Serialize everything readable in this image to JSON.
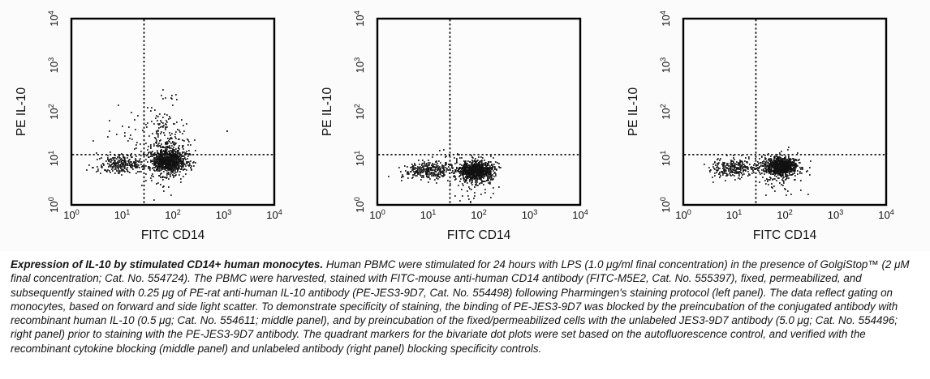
{
  "figure": {
    "panel_count": 3,
    "accent_color": "#000000",
    "background_color": "#fbfbfb"
  },
  "chart_data": [
    {
      "type": "scatter",
      "panel": "left",
      "title": "",
      "xlabel": "FITC CD14",
      "ylabel": "PE IL-10",
      "xscale": "log",
      "yscale": "log",
      "xlim": [
        1,
        10000
      ],
      "ylim": [
        1,
        10000
      ],
      "tick_exponents": [
        0,
        1,
        2,
        3,
        4
      ],
      "grid": false,
      "quadrant_x": 27,
      "quadrant_y": 12,
      "seed": 7,
      "clusters": [
        {
          "name": "cd14pos-il10-main",
          "n": 850,
          "cx": 1.92,
          "cy": 0.93,
          "sx": 0.14,
          "sy": 0.1
        },
        {
          "name": "cd14pos-halo",
          "n": 300,
          "cx": 1.9,
          "cy": 1.02,
          "sx": 0.22,
          "sy": 0.2
        },
        {
          "name": "il10-high-tail",
          "n": 140,
          "cx": 1.85,
          "cy": 1.5,
          "sx": 0.2,
          "sy": 0.38
        },
        {
          "name": "cd14neg-band",
          "n": 260,
          "cx": 1.0,
          "cy": 0.88,
          "sx": 0.24,
          "sy": 0.09
        },
        {
          "name": "upper-left-sparse",
          "n": 40,
          "cx": 1.05,
          "cy": 1.45,
          "sx": 0.3,
          "sy": 0.42
        },
        {
          "name": "below-scatter",
          "n": 25,
          "cx": 1.75,
          "cy": 0.55,
          "sx": 0.25,
          "sy": 0.15
        }
      ],
      "outliers_log10": [
        [
          3.06,
          1.58
        ]
      ]
    },
    {
      "type": "scatter",
      "panel": "middle",
      "title": "",
      "xlabel": "FITC CD14",
      "ylabel": "PE IL-10",
      "xscale": "log",
      "yscale": "log",
      "xlim": [
        1,
        10000
      ],
      "ylim": [
        1,
        10000
      ],
      "tick_exponents": [
        0,
        1,
        2,
        3,
        4
      ],
      "grid": false,
      "quadrant_x": 27,
      "quadrant_y": 12,
      "seed": 11,
      "clusters": [
        {
          "name": "cd14pos-blocked-main",
          "n": 950,
          "cx": 1.92,
          "cy": 0.74,
          "sx": 0.15,
          "sy": 0.09
        },
        {
          "name": "cd14pos-halo",
          "n": 220,
          "cx": 1.88,
          "cy": 0.72,
          "sx": 0.25,
          "sy": 0.13
        },
        {
          "name": "cd14neg-band",
          "n": 300,
          "cx": 1.0,
          "cy": 0.74,
          "sx": 0.24,
          "sy": 0.1
        },
        {
          "name": "below-tail",
          "n": 45,
          "cx": 1.85,
          "cy": 0.38,
          "sx": 0.22,
          "sy": 0.18
        },
        {
          "name": "near-line-above",
          "n": 12,
          "cx": 1.65,
          "cy": 1.05,
          "sx": 0.3,
          "sy": 0.08
        }
      ],
      "outliers_log10": []
    },
    {
      "type": "scatter",
      "panel": "right",
      "title": "",
      "xlabel": "FITC CD14",
      "ylabel": "PE IL-10",
      "xscale": "log",
      "yscale": "log",
      "xlim": [
        1,
        10000
      ],
      "ylim": [
        1,
        10000
      ],
      "tick_exponents": [
        0,
        1,
        2,
        3,
        4
      ],
      "grid": false,
      "quadrant_x": 27,
      "quadrant_y": 12,
      "seed": 13,
      "clusters": [
        {
          "name": "cd14pos-blocked-main",
          "n": 950,
          "cx": 1.93,
          "cy": 0.83,
          "sx": 0.14,
          "sy": 0.09
        },
        {
          "name": "cd14pos-halo",
          "n": 220,
          "cx": 1.88,
          "cy": 0.8,
          "sx": 0.25,
          "sy": 0.13
        },
        {
          "name": "cd14neg-band",
          "n": 280,
          "cx": 1.0,
          "cy": 0.8,
          "sx": 0.24,
          "sy": 0.1
        },
        {
          "name": "below-tail",
          "n": 30,
          "cx": 1.85,
          "cy": 0.45,
          "sx": 0.22,
          "sy": 0.15
        }
      ],
      "outliers_log10": []
    }
  ],
  "caption": {
    "title": "Expression of IL-10 by stimulated CD14+ human monocytes.",
    "body": "Human PBMC were stimulated for 24 hours with LPS (1.0 μg/ml final concentration) in the presence of GolgiStop™ (2 μM final concentration; Cat. No. 554724). The PBMC were harvested, stained with FITC-mouse anti-human CD14 antibody (FITC-M5E2, Cat. No. 555397), fixed, permeabilized, and subsequently stained with 0.25 μg of PE-rat anti-human IL-10 antibody (PE-JES3-9D7, Cat. No. 554498) following Pharmingen's staining protocol (left panel). The data reflect gating on monocytes, based on forward and side light scatter. To demonstrate specificity of staining, the binding of PE-JES3-9D7 was blocked by the preincubation of the conjugated antibody with recombinant human IL-10 (0.5 μg; Cat. No. 554611; middle panel), and by preincubation of the fixed/permeabilized cells with the unlabeled JES3-9D7 antibody (5.0 μg; Cat. No. 554496; right panel) prior to staining with the PE-JES3-9D7 antibody. The quadrant markers for the bivariate dot plots were set based on the autofluorescence control, and verified with the recombinant cytokine blocking (middle panel) and unlabeled antibody (right panel) blocking specificity controls."
  }
}
